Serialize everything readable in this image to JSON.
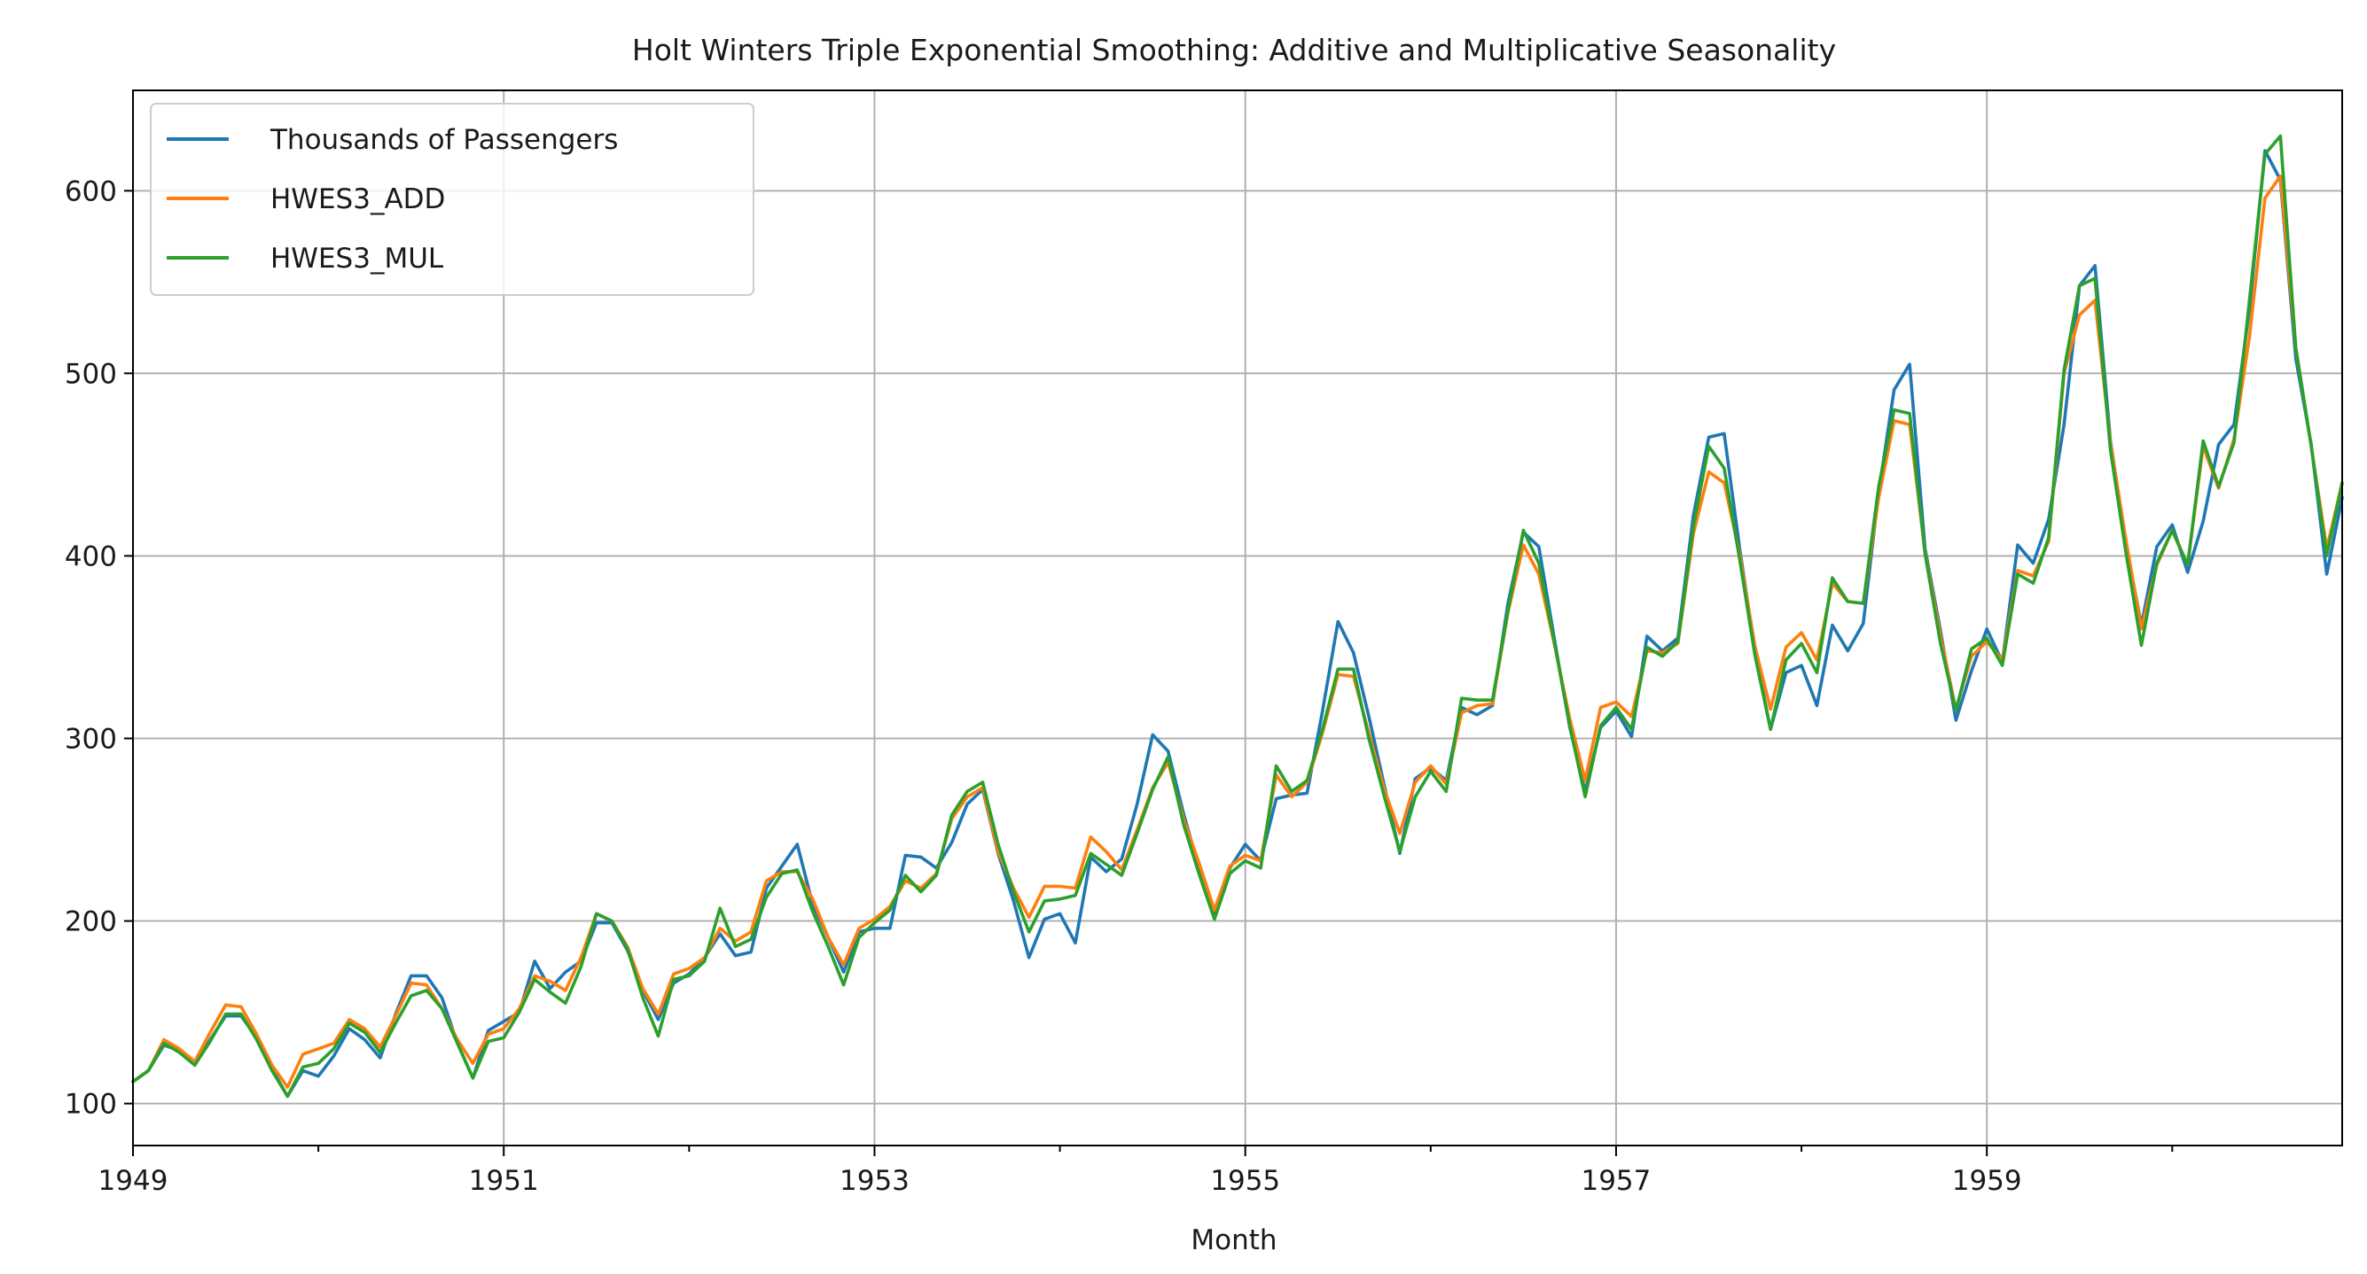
{
  "chart_data": {
    "type": "line",
    "title": "Holt Winters Triple Exponential Smoothing: Additive and Multiplicative Seasonality",
    "xlabel": "Month",
    "ylabel": "",
    "x_start": "1949-01",
    "x_end": "1960-12",
    "xlim": [
      "1949-01",
      "1960-12"
    ],
    "ylim": [
      77,
      655
    ],
    "x_ticks_major": [
      "1949",
      "1951",
      "1953",
      "1955",
      "1957",
      "1959"
    ],
    "x_ticks_minor": [
      "1950",
      "1952",
      "1954",
      "1956",
      "1958",
      "1960"
    ],
    "y_ticks": [
      100,
      200,
      300,
      400,
      500,
      600
    ],
    "grid": true,
    "legend_position": "upper left",
    "series": [
      {
        "name": "Thousands of Passengers",
        "color": "#1f77b4",
        "values": [
          112,
          118,
          132,
          129,
          121,
          135,
          148,
          148,
          136,
          119,
          104,
          118,
          115,
          126,
          141,
          135,
          125,
          149,
          170,
          170,
          158,
          133,
          114,
          140,
          145,
          150,
          178,
          163,
          172,
          178,
          199,
          199,
          184,
          162,
          146,
          166,
          171,
          180,
          193,
          181,
          183,
          218,
          230,
          242,
          209,
          191,
          172,
          194,
          196,
          196,
          236,
          235,
          229,
          243,
          264,
          272,
          237,
          211,
          180,
          201,
          204,
          188,
          235,
          227,
          234,
          264,
          302,
          293,
          259,
          229,
          203,
          229,
          242,
          233,
          267,
          269,
          270,
          315,
          364,
          347,
          312,
          274,
          237,
          278,
          284,
          277,
          317,
          313,
          318,
          374,
          413,
          405,
          355,
          306,
          271,
          306,
          315,
          301,
          356,
          348,
          355,
          422,
          465,
          467,
          404,
          347,
          305,
          336,
          340,
          318,
          362,
          348,
          363,
          435,
          491,
          505,
          404,
          359,
          310,
          337,
          360,
          342,
          406,
          396,
          420,
          472,
          548,
          559,
          463,
          407,
          362,
          405,
          417,
          391,
          419,
          461,
          472,
          535,
          622,
          606,
          508,
          461,
          390,
          432
        ]
      },
      {
        "name": "HWES3_ADD",
        "color": "#ff7f0e",
        "values": [
          112,
          118,
          135,
          130,
          123,
          139,
          154,
          153,
          138,
          121,
          109,
          127,
          130,
          133,
          146,
          141,
          131,
          148,
          166,
          165,
          152,
          135,
          122,
          138,
          141,
          152,
          170,
          167,
          162,
          180,
          204,
          200,
          186,
          163,
          149,
          171,
          174,
          180,
          196,
          189,
          194,
          222,
          227,
          227,
          212,
          191,
          176,
          196,
          201,
          208,
          222,
          218,
          226,
          256,
          268,
          273,
          238,
          218,
          202,
          219,
          219,
          218,
          246,
          238,
          228,
          250,
          273,
          287,
          256,
          232,
          206,
          230,
          236,
          233,
          280,
          268,
          276,
          303,
          335,
          334,
          303,
          272,
          248,
          276,
          285,
          275,
          314,
          318,
          319,
          369,
          406,
          390,
          352,
          311,
          277,
          317,
          320,
          312,
          348,
          347,
          352,
          412,
          446,
          440,
          401,
          350,
          316,
          350,
          358,
          343,
          385,
          375,
          374,
          432,
          474,
          472,
          402,
          356,
          316,
          345,
          353,
          343,
          392,
          389,
          408,
          500,
          532,
          540,
          462,
          409,
          360,
          395,
          414,
          395,
          460,
          437,
          464,
          520,
          596,
          608,
          514,
          460,
          404,
          440
        ]
      },
      {
        "name": "HWES3_MUL",
        "color": "#2ca02c",
        "values": [
          112,
          118,
          133,
          128,
          121,
          134,
          149,
          149,
          135,
          118,
          104,
          120,
          122,
          130,
          144,
          139,
          128,
          144,
          159,
          162,
          152,
          133,
          114,
          134,
          136,
          150,
          168,
          161,
          155,
          175,
          204,
          200,
          185,
          158,
          137,
          168,
          170,
          178,
          207,
          186,
          190,
          213,
          226,
          228,
          205,
          186,
          165,
          191,
          199,
          206,
          225,
          216,
          225,
          258,
          271,
          276,
          242,
          216,
          194,
          211,
          212,
          214,
          237,
          231,
          225,
          248,
          272,
          290,
          253,
          226,
          201,
          226,
          233,
          229,
          285,
          271,
          277,
          305,
          338,
          338,
          300,
          268,
          238,
          268,
          282,
          271,
          322,
          321,
          321,
          370,
          414,
          396,
          353,
          307,
          268,
          307,
          317,
          305,
          350,
          345,
          353,
          416,
          460,
          448,
          398,
          345,
          305,
          343,
          352,
          336,
          388,
          375,
          374,
          438,
          480,
          478,
          401,
          352,
          315,
          349,
          355,
          340,
          390,
          385,
          410,
          502,
          548,
          552,
          458,
          402,
          351,
          396,
          414,
          395,
          463,
          438,
          462,
          540,
          620,
          630,
          514,
          460,
          400,
          440
        ]
      }
    ]
  }
}
